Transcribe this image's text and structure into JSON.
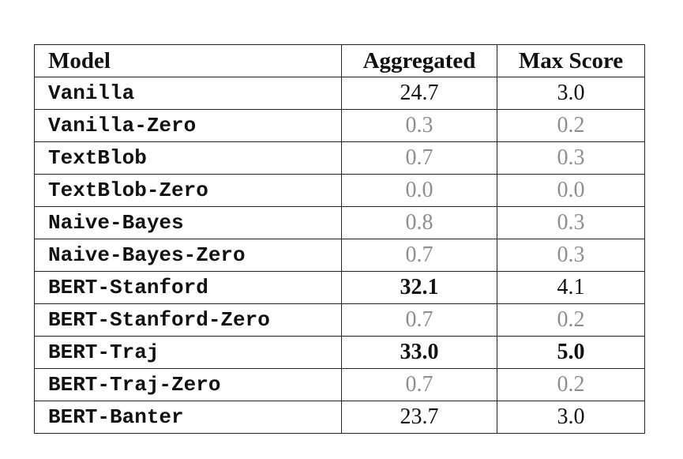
{
  "table": {
    "headers": [
      "Model",
      "Aggregated",
      "Max Score"
    ],
    "rows": [
      {
        "model": "Vanilla",
        "aggregated": "24.7",
        "max_score": "3.0",
        "agg_style": "normal",
        "max_style": "normal"
      },
      {
        "model": "Vanilla-Zero",
        "aggregated": "0.3",
        "max_score": "0.2",
        "agg_style": "faded",
        "max_style": "faded"
      },
      {
        "model": "TextBlob",
        "aggregated": "0.7",
        "max_score": "0.3",
        "agg_style": "faded",
        "max_style": "faded"
      },
      {
        "model": "TextBlob-Zero",
        "aggregated": "0.0",
        "max_score": "0.0",
        "agg_style": "faded",
        "max_style": "faded"
      },
      {
        "model": "Naive-Bayes",
        "aggregated": "0.8",
        "max_score": "0.3",
        "agg_style": "faded",
        "max_style": "faded"
      },
      {
        "model": "Naive-Bayes-Zero",
        "aggregated": "0.7",
        "max_score": "0.3",
        "agg_style": "faded",
        "max_style": "faded"
      },
      {
        "model": "BERT-Stanford",
        "aggregated": "32.1",
        "max_score": "4.1",
        "agg_style": "bold",
        "max_style": "normal"
      },
      {
        "model": "BERT-Stanford-Zero",
        "aggregated": "0.7",
        "max_score": "0.2",
        "agg_style": "faded",
        "max_style": "faded"
      },
      {
        "model": "BERT-Traj",
        "aggregated": "33.0",
        "max_score": "5.0",
        "agg_style": "bold",
        "max_style": "bold"
      },
      {
        "model": "BERT-Traj-Zero",
        "aggregated": "0.7",
        "max_score": "0.2",
        "agg_style": "faded",
        "max_style": "faded"
      },
      {
        "model": "BERT-Banter",
        "aggregated": "23.7",
        "max_score": "3.0",
        "agg_style": "normal",
        "max_style": "normal"
      }
    ]
  },
  "colors": {
    "text": "#111111",
    "faded_text": "#8e8e8e",
    "border": "#222222"
  }
}
